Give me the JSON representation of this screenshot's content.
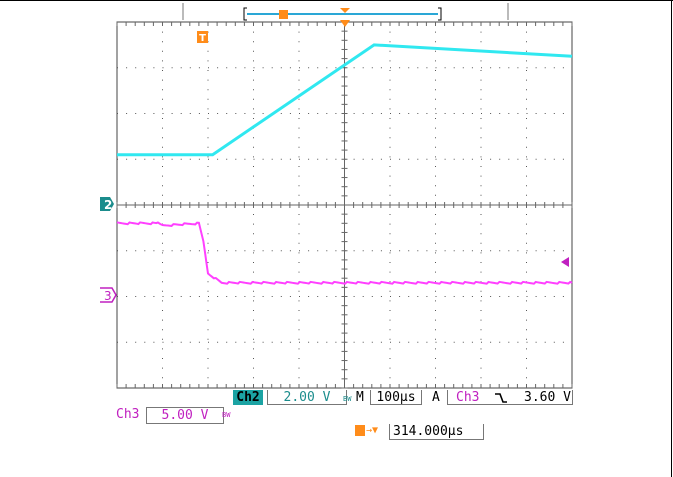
{
  "display": {
    "channel2": {
      "marker": "2",
      "tag": "Ch2",
      "volts_per_div": "2.00 V",
      "bandwidth_mark": "BW",
      "color": "#30e8f0"
    },
    "channel3": {
      "marker": "3",
      "tag": "Ch3",
      "volts_per_div": "5.00 V",
      "bandwidth_mark": "BW",
      "color": "#ff40ff"
    },
    "trigger_marker": "T",
    "timebase": {
      "label": "M",
      "value": "100µs"
    },
    "trigger": {
      "mode": "A",
      "source": "Ch3",
      "slope_glyph": "⌐",
      "level": "3.60 V"
    },
    "trigger_position": {
      "value": "314.000µs"
    },
    "colors": {
      "grid": "#555555",
      "orange": "#ff8c1a",
      "teal_tag": "#1ba3a3",
      "magenta": "#c020c0"
    }
  },
  "chart_data": {
    "type": "line",
    "title": "",
    "xlabel": "",
    "ylabel": "",
    "xlim": [
      0,
      10
    ],
    "ylim": [
      0,
      8
    ],
    "grid": true,
    "series": [
      {
        "name": "Ch2",
        "x": [
          0,
          2.1,
          5.65,
          10
        ],
        "y": [
          5.1,
          5.1,
          7.5,
          7.25
        ]
      },
      {
        "name": "Ch3",
        "x": [
          0,
          0.9,
          1.0,
          1.8,
          1.9,
          2.0,
          2.3,
          10
        ],
        "y": [
          3.6,
          3.6,
          3.55,
          3.6,
          3.2,
          2.5,
          2.3,
          2.3
        ]
      }
    ]
  }
}
